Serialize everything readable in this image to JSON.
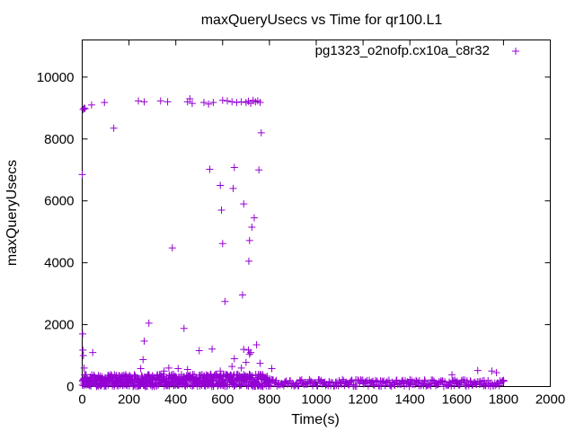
{
  "chart_data": {
    "type": "scatter",
    "title": "maxQueryUsecs vs Time for qr100.L1",
    "xlabel": "Time(s)",
    "ylabel": "maxQueryUsecs",
    "xlim": [
      0,
      2000
    ],
    "ylim": [
      0,
      11200
    ],
    "x_ticks": [
      "0",
      "200",
      "400",
      "600",
      "800",
      "1000",
      "1200",
      "1400",
      "1600",
      "1800",
      "2000"
    ],
    "y_ticks": [
      "0",
      "2000",
      "4000",
      "6000",
      "8000",
      "10000"
    ],
    "x_tick_values": [
      0,
      200,
      400,
      600,
      800,
      1000,
      1200,
      1400,
      1600,
      1800,
      2000
    ],
    "y_tick_values": [
      0,
      2000,
      4000,
      6000,
      8000,
      10000
    ],
    "grid": false,
    "legend_placement": "top-right",
    "series": [
      {
        "name": "pg1323_o2nofp.cx10a_c8r32",
        "color": "#9400d3",
        "marker": "plus",
        "points": [
          [
            0,
            6850
          ],
          [
            2,
            1700
          ],
          [
            3,
            1180
          ],
          [
            5,
            1000
          ],
          [
            8,
            600
          ],
          [
            10,
            380
          ],
          [
            12,
            220
          ],
          [
            4,
            8950
          ],
          [
            8,
            9000
          ],
          [
            12,
            8980
          ],
          [
            40,
            9100
          ],
          [
            95,
            9180
          ],
          [
            135,
            8350
          ],
          [
            240,
            9230
          ],
          [
            265,
            9200
          ],
          [
            335,
            9230
          ],
          [
            365,
            9200
          ],
          [
            450,
            9200
          ],
          [
            460,
            9300
          ],
          [
            470,
            9150
          ],
          [
            520,
            9180
          ],
          [
            540,
            9130
          ],
          [
            560,
            9180
          ],
          [
            600,
            9250
          ],
          [
            620,
            9230
          ],
          [
            640,
            9200
          ],
          [
            660,
            9180
          ],
          [
            680,
            9200
          ],
          [
            700,
            9180
          ],
          [
            710,
            9220
          ],
          [
            720,
            9150
          ],
          [
            730,
            9250
          ],
          [
            740,
            9200
          ],
          [
            750,
            9230
          ],
          [
            760,
            9180
          ],
          [
            765,
            8200
          ],
          [
            755,
            7000
          ],
          [
            545,
            7020
          ],
          [
            650,
            7080
          ],
          [
            590,
            6500
          ],
          [
            645,
            6400
          ],
          [
            690,
            5900
          ],
          [
            595,
            5700
          ],
          [
            735,
            5450
          ],
          [
            725,
            5150
          ],
          [
            715,
            4720
          ],
          [
            600,
            4620
          ],
          [
            385,
            4480
          ],
          [
            712,
            4050
          ],
          [
            610,
            2750
          ],
          [
            685,
            2960
          ],
          [
            285,
            2050
          ],
          [
            435,
            1880
          ],
          [
            265,
            1470
          ],
          [
            745,
            1350
          ],
          [
            500,
            1160
          ],
          [
            555,
            1210
          ],
          [
            690,
            1200
          ],
          [
            710,
            1180
          ],
          [
            720,
            1100
          ],
          [
            715,
            1050
          ],
          [
            45,
            1100
          ],
          [
            260,
            870
          ],
          [
            650,
            900
          ],
          [
            700,
            780
          ],
          [
            760,
            750
          ],
          [
            680,
            600
          ],
          [
            640,
            650
          ],
          [
            590,
            500
          ],
          [
            550,
            400
          ],
          [
            520,
            350
          ],
          [
            450,
            550
          ],
          [
            410,
            580
          ],
          [
            370,
            600
          ],
          [
            350,
            500
          ],
          [
            320,
            380
          ],
          [
            300,
            350
          ],
          [
            250,
            580
          ],
          [
            200,
            300
          ],
          [
            150,
            280
          ],
          [
            100,
            250
          ],
          [
            80,
            200
          ],
          [
            30,
            180
          ],
          [
            810,
            580
          ],
          [
            1580,
            380
          ],
          [
            1690,
            520
          ],
          [
            1750,
            500
          ],
          [
            1770,
            450
          ],
          [
            1800,
            200
          ]
        ],
        "band": {
          "x_range": [
            0,
            1800
          ],
          "y_range": [
            0,
            250
          ],
          "note": ""
        }
      }
    ]
  }
}
